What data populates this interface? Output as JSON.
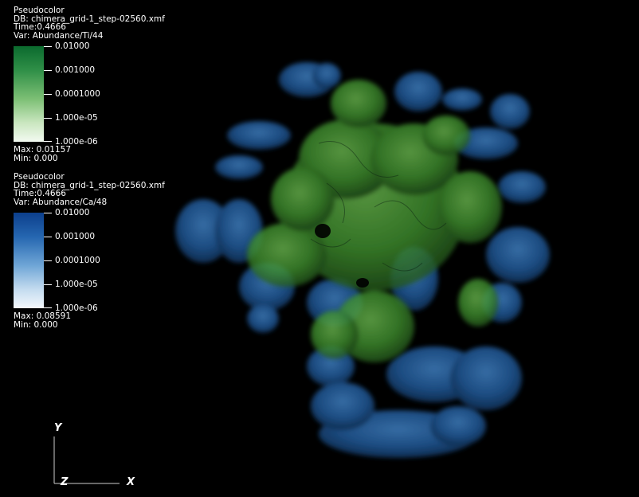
{
  "legend_ti": {
    "plot_type": "Pseudocolor",
    "db": "DB: chimera_grid-1_step-02560.xmf",
    "time": "Time:0.4666",
    "var": "Var: Abundance/Ti/44",
    "ticks": [
      "0.01000",
      "0.001000",
      "0.0001000",
      "1.000e-05",
      "1.000e-06"
    ],
    "max": "Max:  0.01157",
    "min": "Min:  0.000",
    "color_high": "#0b6a2e",
    "color_low": "#f3faf1"
  },
  "legend_ca": {
    "plot_type": "Pseudocolor",
    "db": "DB: chimera_grid-1_step-02560.xmf",
    "time": "Time:0.4666",
    "var": "Var: Abundance/Ca/48",
    "ticks": [
      "0.01000",
      "0.001000",
      "0.0001000",
      "1.000e-05",
      "1.000e-06"
    ],
    "max": "Max:  0.08591",
    "min": "Min:  0.000",
    "color_high": "#0c3f8c",
    "color_low": "#f4f8fc"
  },
  "axes": {
    "y": "Y",
    "z": "Z",
    "x": "X"
  },
  "render_colors": {
    "ca_blue": "#1f5a9a",
    "ti_green": "#3f8f2e"
  }
}
